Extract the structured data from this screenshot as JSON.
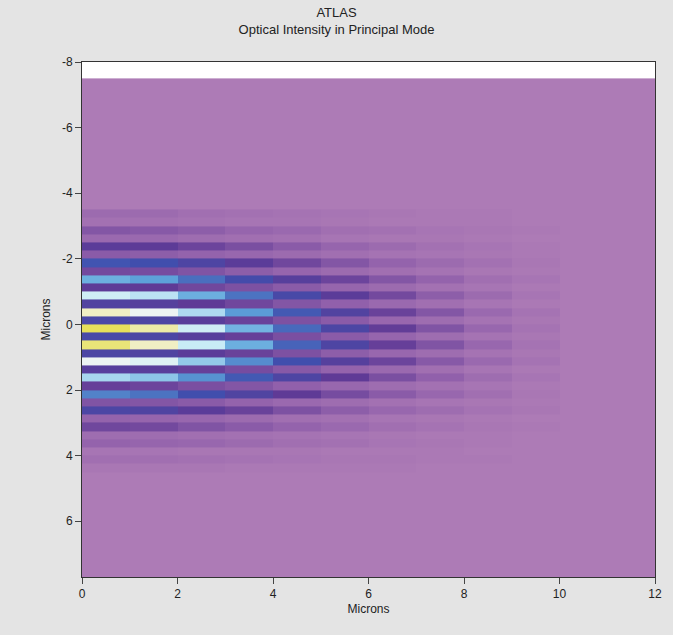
{
  "chart_data": {
    "type": "heatmap",
    "title": "ATLAS",
    "subtitle": "Optical Intensity in Principal Mode",
    "x_label": "Microns",
    "y_label": "Microns",
    "xlim": [
      0,
      12
    ],
    "ylim": [
      -8,
      7.7
    ],
    "xticks": [
      0,
      2,
      4,
      6,
      8,
      10,
      12
    ],
    "yticks": [
      -8,
      -6,
      -4,
      -2,
      0,
      2,
      4,
      6
    ],
    "zlim": [
      0,
      1
    ],
    "x_bins": [
      0,
      1,
      2,
      3,
      4,
      5,
      6,
      7,
      8,
      9,
      10,
      11,
      12
    ],
    "y_bins": [
      -7.5,
      -3.5,
      -3.25,
      -3,
      -2.75,
      -2.5,
      -2.25,
      -2,
      -1.75,
      -1.5,
      -1.25,
      -1,
      -0.75,
      -0.5,
      -0.25,
      0,
      0.25,
      0.5,
      0.75,
      1,
      1.25,
      1.5,
      1.75,
      2,
      2.25,
      2.5,
      2.75,
      3,
      3.25,
      3.5,
      3.75,
      4,
      4.25,
      4.5,
      7.7
    ],
    "cells": [
      [
        0,
        0,
        0,
        0,
        0,
        0,
        0,
        0,
        0,
        0,
        0,
        0
      ],
      [
        0.08,
        0.08,
        0.06,
        0.05,
        0.04,
        0.03,
        0.02,
        0.01,
        0.01,
        0,
        0,
        0
      ],
      [
        0.05,
        0.05,
        0.04,
        0.03,
        0.03,
        0.02,
        0.01,
        0.01,
        0.01,
        0,
        0,
        0
      ],
      [
        0.17,
        0.16,
        0.14,
        0.11,
        0.09,
        0.06,
        0.05,
        0.03,
        0.02,
        0.01,
        0,
        0
      ],
      [
        0.09,
        0.09,
        0.07,
        0.06,
        0.05,
        0.03,
        0.02,
        0.02,
        0.01,
        0,
        0,
        0
      ],
      [
        0.3,
        0.29,
        0.24,
        0.2,
        0.15,
        0.11,
        0.08,
        0.05,
        0.03,
        0.01,
        0,
        0
      ],
      [
        0.15,
        0.14,
        0.12,
        0.1,
        0.08,
        0.06,
        0.04,
        0.03,
        0.02,
        0.01,
        0,
        0
      ],
      [
        0.46,
        0.44,
        0.37,
        0.3,
        0.23,
        0.17,
        0.12,
        0.08,
        0.05,
        0.02,
        0,
        0
      ],
      [
        0.22,
        0.21,
        0.18,
        0.14,
        0.11,
        0.08,
        0.06,
        0.04,
        0.02,
        0.01,
        0,
        0
      ],
      [
        0.64,
        0.61,
        0.51,
        0.42,
        0.32,
        0.24,
        0.17,
        0.12,
        0.06,
        0.03,
        0,
        0
      ],
      [
        0.29,
        0.28,
        0.23,
        0.19,
        0.15,
        0.11,
        0.08,
        0.05,
        0.03,
        0.01,
        0,
        0
      ],
      [
        0.8,
        0.76,
        0.64,
        0.52,
        0.4,
        0.3,
        0.22,
        0.14,
        0.08,
        0.03,
        0,
        0
      ],
      [
        0.35,
        0.33,
        0.28,
        0.23,
        0.17,
        0.13,
        0.09,
        0.06,
        0.03,
        0.01,
        0,
        0
      ],
      [
        0.93,
        0.88,
        0.74,
        0.6,
        0.47,
        0.35,
        0.25,
        0.17,
        0.09,
        0.04,
        0,
        0
      ],
      [
        0.39,
        0.37,
        0.31,
        0.25,
        0.19,
        0.15,
        0.1,
        0.07,
        0.04,
        0.02,
        0,
        0
      ],
      [
        1,
        0.95,
        0.8,
        0.65,
        0.5,
        0.38,
        0.27,
        0.18,
        0.1,
        0.04,
        0,
        0
      ],
      [
        0.4,
        0.38,
        0.32,
        0.26,
        0.2,
        0.15,
        0.11,
        0.07,
        0.04,
        0.02,
        0,
        0
      ],
      [
        0.98,
        0.93,
        0.78,
        0.64,
        0.49,
        0.37,
        0.26,
        0.18,
        0.1,
        0.04,
        0,
        0
      ],
      [
        0.38,
        0.36,
        0.3,
        0.25,
        0.19,
        0.14,
        0.1,
        0.07,
        0.04,
        0.02,
        0,
        0
      ],
      [
        0.88,
        0.84,
        0.7,
        0.57,
        0.44,
        0.33,
        0.24,
        0.16,
        0.09,
        0.04,
        0,
        0
      ],
      [
        0.32,
        0.31,
        0.26,
        0.21,
        0.16,
        0.12,
        0.09,
        0.06,
        0.03,
        0.01,
        0,
        0
      ],
      [
        0.73,
        0.69,
        0.58,
        0.47,
        0.37,
        0.28,
        0.2,
        0.13,
        0.07,
        0.03,
        0,
        0
      ],
      [
        0.26,
        0.24,
        0.2,
        0.17,
        0.13,
        0.1,
        0.07,
        0.05,
        0.03,
        0.01,
        0,
        0
      ],
      [
        0.55,
        0.52,
        0.44,
        0.36,
        0.28,
        0.21,
        0.15,
        0.1,
        0.06,
        0.02,
        0,
        0
      ],
      [
        0.18,
        0.17,
        0.15,
        0.12,
        0.09,
        0.07,
        0.05,
        0.03,
        0.02,
        0.01,
        0,
        0
      ],
      [
        0.38,
        0.36,
        0.3,
        0.25,
        0.19,
        0.14,
        0.1,
        0.07,
        0.04,
        0.02,
        0,
        0
      ],
      [
        0.12,
        0.11,
        0.1,
        0.08,
        0.06,
        0.05,
        0.03,
        0.02,
        0.01,
        0,
        0,
        0
      ],
      [
        0.23,
        0.22,
        0.18,
        0.15,
        0.12,
        0.09,
        0.06,
        0.04,
        0.02,
        0.01,
        0,
        0
      ],
      [
        0.07,
        0.07,
        0.06,
        0.05,
        0.04,
        0.03,
        0.02,
        0.01,
        0.01,
        0,
        0,
        0
      ],
      [
        0.12,
        0.11,
        0.1,
        0.08,
        0.06,
        0.05,
        0.03,
        0.02,
        0.01,
        0,
        0,
        0
      ],
      [
        0.03,
        0.03,
        0.02,
        0.02,
        0.02,
        0.01,
        0.01,
        0.01,
        0,
        0,
        0,
        0
      ],
      [
        0.06,
        0.06,
        0.05,
        0.04,
        0.03,
        0.02,
        0.02,
        0.01,
        0.01,
        0,
        0,
        0
      ],
      [
        0.02,
        0.02,
        0.02,
        0.01,
        0.01,
        0.01,
        0.01,
        0,
        0,
        0,
        0,
        0
      ],
      [
        0,
        0,
        0,
        0,
        0,
        0,
        0,
        0,
        0,
        0,
        0,
        0
      ]
    ]
  }
}
